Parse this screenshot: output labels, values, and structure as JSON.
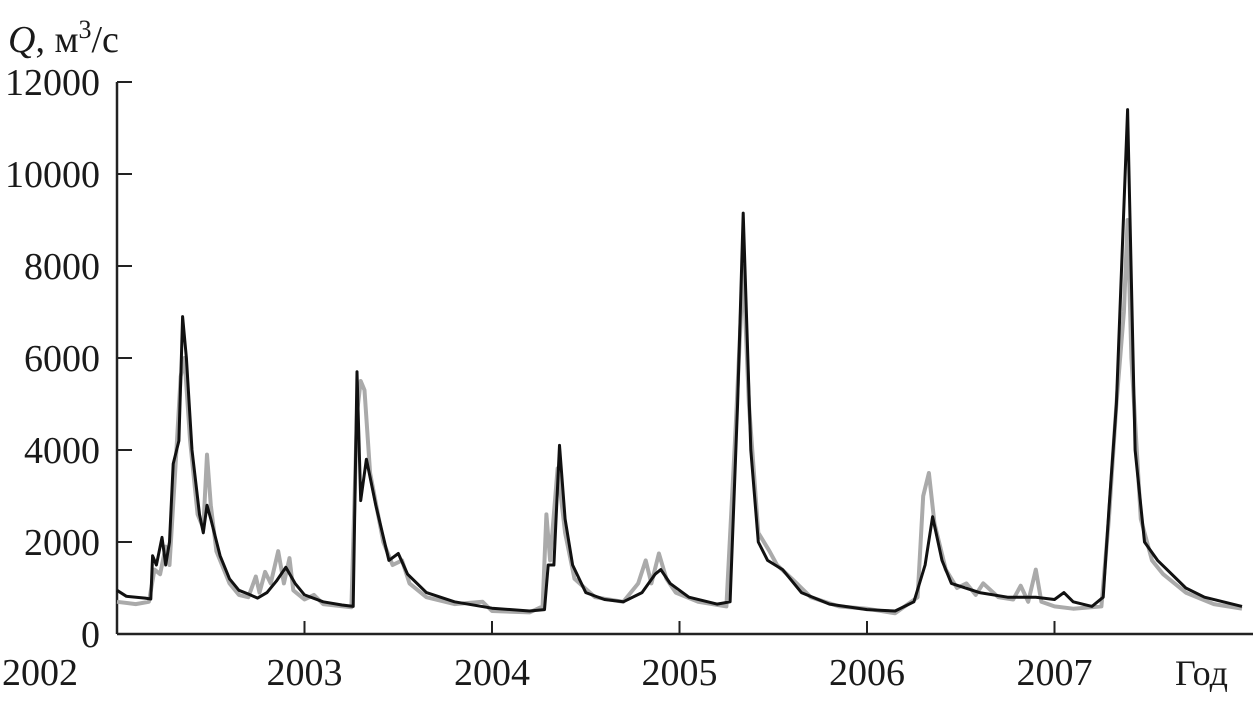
{
  "chart_data": {
    "type": "line",
    "title": "",
    "ylabel": "Q, м³/с",
    "ylabel_parts": {
      "var": "Q",
      "unit_pre": ", м",
      "unit_sup": "3",
      "unit_post": "/с"
    },
    "xlabel": "Год",
    "xlim": [
      2002,
      2008
    ],
    "ylim": [
      0,
      12000
    ],
    "x_ticks": [
      "2002",
      "2003",
      "2004",
      "2005",
      "2006",
      "2007"
    ],
    "x_tick_values": [
      2002,
      2003,
      2004,
      2005,
      2006,
      2007
    ],
    "y_ticks": [
      "0",
      "2000",
      "4000",
      "6000",
      "8000",
      "10000",
      "12000"
    ],
    "y_tick_values": [
      0,
      2000,
      4000,
      6000,
      8000,
      10000,
      12000
    ],
    "grid": false,
    "legend": "none",
    "series": [
      {
        "color": "#aaaaaa",
        "points": [
          [
            2002.0,
            700
          ],
          [
            2002.1,
            650
          ],
          [
            2002.17,
            700
          ],
          [
            2002.2,
            1400
          ],
          [
            2002.23,
            1300
          ],
          [
            2002.26,
            1900
          ],
          [
            2002.28,
            1500
          ],
          [
            2002.31,
            3500
          ],
          [
            2002.34,
            5600
          ],
          [
            2002.36,
            6000
          ],
          [
            2002.39,
            4200
          ],
          [
            2002.43,
            2600
          ],
          [
            2002.46,
            2300
          ],
          [
            2002.48,
            3900
          ],
          [
            2002.5,
            2800
          ],
          [
            2002.53,
            1800
          ],
          [
            2002.6,
            1100
          ],
          [
            2002.65,
            850
          ],
          [
            2002.7,
            800
          ],
          [
            2002.74,
            1250
          ],
          [
            2002.76,
            900
          ],
          [
            2002.79,
            1350
          ],
          [
            2002.82,
            1100
          ],
          [
            2002.86,
            1800
          ],
          [
            2002.89,
            1100
          ],
          [
            2002.92,
            1650
          ],
          [
            2002.94,
            950
          ],
          [
            2003.0,
            750
          ],
          [
            2003.05,
            850
          ],
          [
            2003.1,
            650
          ],
          [
            2003.25,
            580
          ],
          [
            2003.28,
            4800
          ],
          [
            2003.3,
            5500
          ],
          [
            2003.32,
            5300
          ],
          [
            2003.35,
            3500
          ],
          [
            2003.42,
            2000
          ],
          [
            2003.47,
            1500
          ],
          [
            2003.52,
            1600
          ],
          [
            2003.56,
            1100
          ],
          [
            2003.65,
            800
          ],
          [
            2003.8,
            650
          ],
          [
            2003.95,
            700
          ],
          [
            2004.0,
            500
          ],
          [
            2004.2,
            470
          ],
          [
            2004.27,
            600
          ],
          [
            2004.29,
            2600
          ],
          [
            2004.31,
            1600
          ],
          [
            2004.35,
            3600
          ],
          [
            2004.39,
            2200
          ],
          [
            2004.44,
            1200
          ],
          [
            2004.55,
            800
          ],
          [
            2004.7,
            700
          ],
          [
            2004.78,
            1100
          ],
          [
            2004.82,
            1600
          ],
          [
            2004.85,
            1100
          ],
          [
            2004.89,
            1750
          ],
          [
            2004.93,
            1200
          ],
          [
            2004.98,
            900
          ],
          [
            2005.1,
            700
          ],
          [
            2005.25,
            600
          ],
          [
            2005.3,
            4500
          ],
          [
            2005.34,
            8000
          ],
          [
            2005.37,
            5000
          ],
          [
            2005.42,
            2200
          ],
          [
            2005.48,
            1800
          ],
          [
            2005.52,
            1500
          ],
          [
            2005.6,
            1200
          ],
          [
            2005.7,
            800
          ],
          [
            2005.85,
            600
          ],
          [
            2006.0,
            550
          ],
          [
            2006.15,
            450
          ],
          [
            2006.27,
            800
          ],
          [
            2006.3,
            3000
          ],
          [
            2006.33,
            3500
          ],
          [
            2006.36,
            2400
          ],
          [
            2006.42,
            1400
          ],
          [
            2006.48,
            1000
          ],
          [
            2006.53,
            1100
          ],
          [
            2006.58,
            850
          ],
          [
            2006.62,
            1100
          ],
          [
            2006.7,
            800
          ],
          [
            2006.78,
            750
          ],
          [
            2006.82,
            1050
          ],
          [
            2006.86,
            700
          ],
          [
            2006.9,
            1400
          ],
          [
            2006.93,
            700
          ],
          [
            2007.0,
            600
          ],
          [
            2007.1,
            550
          ],
          [
            2007.25,
            600
          ],
          [
            2007.29,
            2500
          ],
          [
            2007.33,
            5000
          ],
          [
            2007.37,
            7000
          ],
          [
            2007.39,
            9000
          ],
          [
            2007.41,
            6000
          ],
          [
            2007.46,
            2500
          ],
          [
            2007.52,
            1600
          ],
          [
            2007.58,
            1300
          ],
          [
            2007.7,
            900
          ],
          [
            2007.85,
            650
          ],
          [
            2008.0,
            550
          ]
        ]
      },
      {
        "color": "#111111",
        "points": [
          [
            2002.0,
            950
          ],
          [
            2002.05,
            820
          ],
          [
            2002.15,
            780
          ],
          [
            2002.18,
            760
          ],
          [
            2002.19,
            1700
          ],
          [
            2002.21,
            1500
          ],
          [
            2002.24,
            2100
          ],
          [
            2002.26,
            1500
          ],
          [
            2002.28,
            2000
          ],
          [
            2002.3,
            3700
          ],
          [
            2002.33,
            4200
          ],
          [
            2002.35,
            6900
          ],
          [
            2002.37,
            6000
          ],
          [
            2002.4,
            4000
          ],
          [
            2002.44,
            2600
          ],
          [
            2002.46,
            2200
          ],
          [
            2002.48,
            2800
          ],
          [
            2002.5,
            2500
          ],
          [
            2002.55,
            1700
          ],
          [
            2002.6,
            1200
          ],
          [
            2002.65,
            950
          ],
          [
            2002.7,
            870
          ],
          [
            2002.75,
            780
          ],
          [
            2002.8,
            900
          ],
          [
            2002.85,
            1150
          ],
          [
            2002.9,
            1450
          ],
          [
            2002.95,
            1100
          ],
          [
            2003.0,
            850
          ],
          [
            2003.1,
            700
          ],
          [
            2003.2,
            630
          ],
          [
            2003.26,
            600
          ],
          [
            2003.28,
            5700
          ],
          [
            2003.3,
            2900
          ],
          [
            2003.33,
            3800
          ],
          [
            2003.38,
            2800
          ],
          [
            2003.45,
            1600
          ],
          [
            2003.5,
            1750
          ],
          [
            2003.55,
            1300
          ],
          [
            2003.65,
            900
          ],
          [
            2003.8,
            700
          ],
          [
            2004.0,
            560
          ],
          [
            2004.2,
            500
          ],
          [
            2004.28,
            530
          ],
          [
            2004.3,
            1500
          ],
          [
            2004.33,
            1500
          ],
          [
            2004.36,
            4100
          ],
          [
            2004.39,
            2500
          ],
          [
            2004.43,
            1500
          ],
          [
            2004.5,
            900
          ],
          [
            2004.6,
            750
          ],
          [
            2004.7,
            700
          ],
          [
            2004.8,
            900
          ],
          [
            2004.87,
            1300
          ],
          [
            2004.9,
            1400
          ],
          [
            2004.95,
            1100
          ],
          [
            2005.05,
            800
          ],
          [
            2005.2,
            650
          ],
          [
            2005.27,
            700
          ],
          [
            2005.31,
            5000
          ],
          [
            2005.34,
            9150
          ],
          [
            2005.38,
            4000
          ],
          [
            2005.42,
            2000
          ],
          [
            2005.47,
            1600
          ],
          [
            2005.55,
            1400
          ],
          [
            2005.65,
            900
          ],
          [
            2005.8,
            650
          ],
          [
            2006.0,
            530
          ],
          [
            2006.15,
            500
          ],
          [
            2006.25,
            700
          ],
          [
            2006.31,
            1500
          ],
          [
            2006.35,
            2550
          ],
          [
            2006.4,
            1600
          ],
          [
            2006.45,
            1100
          ],
          [
            2006.6,
            900
          ],
          [
            2006.75,
            800
          ],
          [
            2006.9,
            800
          ],
          [
            2007.0,
            750
          ],
          [
            2007.05,
            900
          ],
          [
            2007.1,
            700
          ],
          [
            2007.2,
            600
          ],
          [
            2007.26,
            800
          ],
          [
            2007.29,
            2700
          ],
          [
            2007.33,
            5000
          ],
          [
            2007.39,
            11400
          ],
          [
            2007.43,
            4000
          ],
          [
            2007.48,
            2000
          ],
          [
            2007.55,
            1600
          ],
          [
            2007.6,
            1400
          ],
          [
            2007.7,
            1000
          ],
          [
            2007.8,
            800
          ],
          [
            2008.0,
            600
          ]
        ]
      }
    ]
  }
}
